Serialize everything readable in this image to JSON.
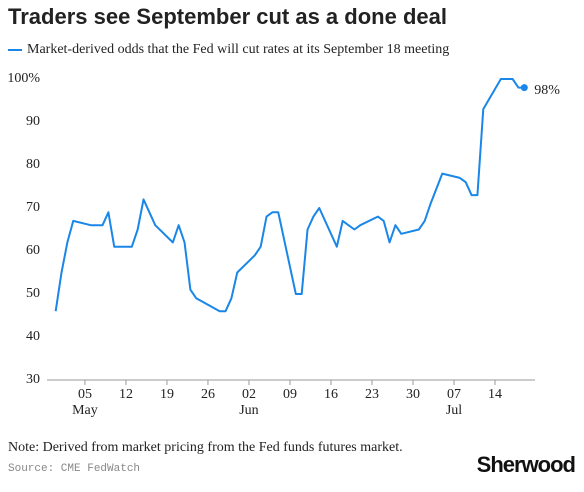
{
  "chart_data": {
    "type": "line",
    "title": "Traders see September cut as a done deal",
    "note": "Note: Derived from market pricing from the Fed funds futures market.",
    "source": "Source: CME FedWatch",
    "brand": "Sherwood",
    "x": [
      "04-30",
      "05-01",
      "05-02",
      "05-03",
      "05-06",
      "05-07",
      "05-08",
      "05-09",
      "05-10",
      "05-13",
      "05-14",
      "05-15",
      "05-16",
      "05-17",
      "05-20",
      "05-21",
      "05-22",
      "05-23",
      "05-24",
      "05-28",
      "05-29",
      "05-30",
      "05-31",
      "06-03",
      "06-04",
      "06-05",
      "06-06",
      "06-07",
      "06-10",
      "06-11",
      "06-12",
      "06-13",
      "06-14",
      "06-17",
      "06-18",
      "06-20",
      "06-21",
      "06-24",
      "06-25",
      "06-26",
      "06-27",
      "06-28",
      "07-01",
      "07-02",
      "07-03",
      "07-05",
      "07-08",
      "07-09",
      "07-10",
      "07-11",
      "07-12",
      "07-15",
      "07-16",
      "07-17",
      "07-18",
      "07-19"
    ],
    "series": [
      {
        "name": "Market-derived odds that the Fed will cut rates at its September 18 meeting",
        "color": "#1a87e8",
        "values": [
          46,
          55,
          62,
          67,
          66,
          66,
          66,
          69,
          61,
          61,
          65,
          72,
          69,
          66,
          62,
          66,
          62,
          51,
          49,
          46,
          46,
          49,
          55,
          59,
          61,
          68,
          69,
          69,
          50,
          50,
          65,
          68,
          70,
          61,
          67,
          65,
          66,
          68,
          67,
          62,
          66,
          64,
          65,
          67,
          71,
          78,
          77,
          76,
          73,
          73,
          93,
          100,
          100,
          100,
          98,
          98
        ],
        "value_labels": [
          null,
          null,
          null,
          null,
          null,
          null,
          null,
          null,
          null,
          null,
          null,
          null,
          null,
          null,
          null,
          null,
          null,
          null,
          null,
          null,
          null,
          null,
          null,
          null,
          null,
          null,
          null,
          null,
          null,
          null,
          null,
          null,
          null,
          null,
          null,
          null,
          null,
          null,
          null,
          null,
          null,
          null,
          null,
          null,
          null,
          null,
          null,
          null,
          null,
          null,
          null,
          null,
          null,
          null,
          null,
          "98%"
        ]
      }
    ],
    "xlim": [
      "04-29",
      "07-21"
    ],
    "xticks": [
      {
        "value": "05-05",
        "label": "05"
      },
      {
        "value": "05-12",
        "label": "12"
      },
      {
        "value": "05-19",
        "label": "19"
      },
      {
        "value": "05-26",
        "label": "26"
      },
      {
        "value": "06-02",
        "label": "02"
      },
      {
        "value": "06-09",
        "label": "09"
      },
      {
        "value": "06-16",
        "label": "16"
      },
      {
        "value": "06-23",
        "label": "23"
      },
      {
        "value": "06-30",
        "label": "30"
      },
      {
        "value": "07-07",
        "label": "07"
      },
      {
        "value": "07-14",
        "label": "14"
      }
    ],
    "month_labels": [
      {
        "value": "05-05",
        "label": "May"
      },
      {
        "value": "06-02",
        "label": "Jun"
      },
      {
        "value": "07-07",
        "label": "Jul"
      }
    ],
    "ylim": [
      30,
      100
    ],
    "yticks": [
      30,
      40,
      50,
      60,
      70,
      80,
      90,
      {
        "value": 100,
        "label": "100%"
      }
    ]
  }
}
